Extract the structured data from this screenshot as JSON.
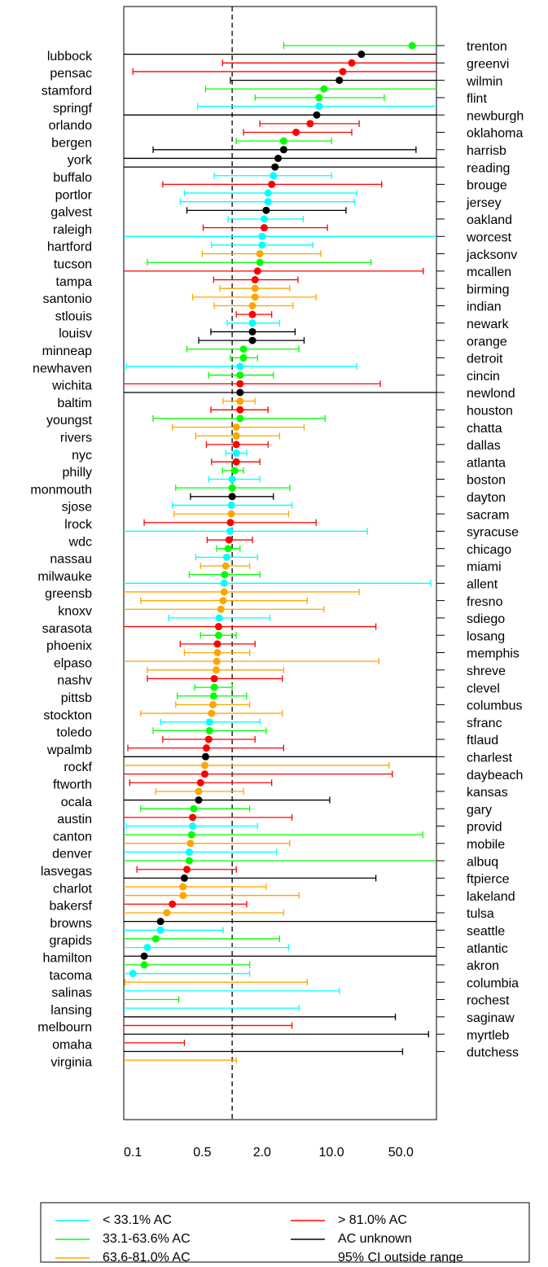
{
  "chart_data": {
    "type": "forest",
    "xscale": "log",
    "xlim": [
      0.081,
      114
    ],
    "xticks": [
      0.1,
      0.5,
      {
        "value": 2,
        "label": "2.0"
      },
      {
        "value": 10,
        "label": "10.0"
      },
      {
        "value": 50,
        "label": "50.0"
      }
    ],
    "refline": 1,
    "categories": [
      "trenton",
      "lubbock",
      "greenvi",
      "pensac",
      "wilmin",
      "stamford",
      "flint",
      "springf",
      "newburgh",
      "orlando",
      "oklahoma",
      "bergen",
      "harrisb",
      "york",
      "reading",
      "buffalo",
      "brouge",
      "portlor",
      "jersey",
      "galvest",
      "oakland",
      "raleigh",
      "worcest",
      "hartford",
      "jacksonv",
      "tucson",
      "mcallen",
      "tampa",
      "birming",
      "santonio",
      "indian",
      "stlouis",
      "newark",
      "louisv",
      "orange",
      "minneap",
      "detroit",
      "newhaven",
      "cincin",
      "wichita",
      "newlond",
      "baltim",
      "houston",
      "youngst",
      "chatta",
      "rivers",
      "dallas",
      "nyc",
      "atlanta",
      "philly",
      "boston",
      "monmouth",
      "dayton",
      "sjose",
      "sacram",
      "lrock",
      "syracuse",
      "wdc",
      "chicago",
      "nassau",
      "miami",
      "milwauke",
      "allent",
      "greensb",
      "fresno",
      "knoxv",
      "sdiego",
      "sarasota",
      "losang",
      "phoenix",
      "memphis",
      "elpaso",
      "shreve",
      "nashv",
      "clevel",
      "pittsb",
      "columbus",
      "stockton",
      "sfranc",
      "toledo",
      "ftlaud",
      "wpalmb",
      "charlest",
      "rockf",
      "daybeach",
      "ftworth",
      "kansas",
      "ocala",
      "gary",
      "austin",
      "provid",
      "canton",
      "mobile",
      "denver",
      "albuq",
      "lasvegas",
      "ftpierce",
      "charlot",
      "lakeland",
      "bakersf",
      "tulsa",
      "browns",
      "seattle",
      "grapids",
      "atlantic",
      "hamilton",
      "akron",
      "tacoma",
      "columbia",
      "salinas",
      "rochest",
      "lansing",
      "saginaw",
      "melbourn",
      "myrtleb",
      "omaha",
      "dutchess",
      "virginia"
    ],
    "values": [
      65,
      20,
      16,
      13,
      12,
      8.4,
      7.5,
      7.5,
      7.1,
      6.1,
      4.4,
      3.3,
      3.3,
      2.9,
      2.7,
      2.6,
      2.5,
      2.3,
      2.3,
      2.2,
      2.1,
      2.1,
      2.0,
      2.0,
      1.9,
      1.9,
      1.8,
      1.7,
      1.7,
      1.7,
      1.6,
      1.6,
      1.6,
      1.6,
      1.6,
      1.3,
      1.3,
      1.2,
      1.2,
      1.2,
      1.2,
      1.2,
      1.2,
      1.2,
      1.1,
      1.1,
      1.1,
      1.1,
      1.1,
      1.06,
      1.0,
      1.0,
      1.0,
      0.98,
      0.98,
      0.96,
      0.95,
      0.93,
      0.91,
      0.88,
      0.86,
      0.84,
      0.83,
      0.83,
      0.81,
      0.77,
      0.74,
      0.73,
      0.73,
      0.71,
      0.71,
      0.7,
      0.69,
      0.66,
      0.66,
      0.65,
      0.64,
      0.62,
      0.59,
      0.59,
      0.58,
      0.55,
      0.54,
      0.53,
      0.53,
      0.48,
      0.46,
      0.46,
      0.41,
      0.4,
      0.4,
      0.39,
      0.38,
      0.37,
      0.37,
      0.35,
      0.33,
      0.32,
      0.32,
      0.25,
      0.22,
      0.19,
      0.19,
      0.17,
      0.14,
      0.13,
      0.13,
      0.1,
      null,
      null,
      null,
      null,
      null,
      null,
      null,
      null,
      null,
      null
    ],
    "lower": [
      3.3,
      null,
      0.8,
      0.1,
      0.96,
      0.54,
      1.7,
      0.45,
      null,
      1.9,
      1.3,
      1.1,
      0.16,
      null,
      null,
      0.66,
      0.2,
      0.33,
      0.3,
      0.35,
      0.91,
      0.51,
      null,
      0.62,
      0.5,
      0.14,
      null,
      0.65,
      0.75,
      0.4,
      0.66,
      1.1,
      0.89,
      0.61,
      0.46,
      0.35,
      0.96,
      0.086,
      0.58,
      null,
      null,
      0.81,
      0.61,
      0.16,
      0.25,
      0.43,
      0.55,
      0.86,
      0.62,
      0.8,
      0.58,
      0.27,
      0.38,
      0.25,
      0.26,
      0.13,
      null,
      0.56,
      0.7,
      0.43,
      0.48,
      0.37,
      null,
      null,
      0.12,
      null,
      0.23,
      null,
      0.48,
      0.3,
      0.33,
      null,
      0.14,
      0.14,
      0.42,
      0.28,
      0.27,
      0.12,
      0.19,
      0.16,
      0.2,
      0.089,
      null,
      null,
      null,
      0.093,
      0.17,
      null,
      0.12,
      null,
      0.086,
      null,
      null,
      null,
      null,
      0.11,
      null,
      null,
      null,
      null,
      null,
      null,
      null,
      null,
      null,
      null,
      null,
      null,
      0.083,
      null,
      null,
      null,
      null,
      null,
      null,
      null,
      null,
      null
    ],
    "upper": [
      null,
      null,
      null,
      null,
      null,
      null,
      34,
      null,
      null,
      19,
      16,
      10,
      71,
      null,
      null,
      10,
      32,
      18,
      17,
      14,
      5.2,
      9.1,
      null,
      6.5,
      7.8,
      25,
      84,
      4.6,
      3.8,
      7.0,
      4.1,
      2.5,
      3.0,
      4.3,
      5.3,
      4.7,
      1.8,
      18,
      2.6,
      31,
      null,
      1.7,
      2.3,
      8.6,
      5.3,
      3.0,
      2.3,
      1.4,
      1.9,
      1.3,
      1.9,
      3.8,
      2.6,
      4.0,
      3.7,
      7.0,
      23,
      1.6,
      1.2,
      1.8,
      1.5,
      1.9,
      100,
      19,
      5.7,
      8.4,
      2.4,
      28,
      1.1,
      1.7,
      1.5,
      30,
      3.3,
      3.2,
      1.0,
      1.4,
      1.5,
      3.2,
      1.9,
      2.2,
      1.7,
      3.3,
      null,
      38,
      41,
      2.5,
      1.3,
      9.6,
      1.5,
      4.0,
      1.8,
      83,
      3.8,
      2.8,
      null,
      1.1,
      28,
      2.2,
      4.7,
      1.4,
      3.3,
      null,
      0.81,
      3.0,
      3.7,
      null,
      1.5,
      1.5,
      5.7,
      12,
      0.29,
      4.7,
      44,
      4.0,
      95,
      0.33,
      52,
      1.1
    ],
    "colors": [
      "#0f0",
      "#000",
      "#f00",
      "#f00",
      "#000",
      "#0f0",
      "#0f0",
      "#0ff",
      "#000",
      "#f00",
      "#f00",
      "#0f0",
      "#000",
      "#000",
      "#000",
      "#0ff",
      "#f00",
      "#0ff",
      "#0ff",
      "#000",
      "#0ff",
      "#f00",
      "#0ff",
      "#0ff",
      "#ffa500",
      "#0f0",
      "#f00",
      "#f00",
      "#ffa500",
      "#ffa500",
      "#ffa500",
      "#f00",
      "#0ff",
      "#000",
      "#000",
      "#0f0",
      "#0f0",
      "#0ff",
      "#0f0",
      "#f00",
      "#000",
      "#ffa500",
      "#f00",
      "#0f0",
      "#ffa500",
      "#ffa500",
      "#f00",
      "#0ff",
      "#f00",
      "#0f0",
      "#0ff",
      "#0f0",
      "#000",
      "#0ff",
      "#ffa500",
      "#f00",
      "#0ff",
      "#f00",
      "#0f0",
      "#0ff",
      "#ffa500",
      "#0f0",
      "#0ff",
      "#ffa500",
      "#ffa500",
      "#ffa500",
      "#0ff",
      "#f00",
      "#0f0",
      "#f00",
      "#ffa500",
      "#ffa500",
      "#ffa500",
      "#f00",
      "#0f0",
      "#0f0",
      "#ffa500",
      "#ffa500",
      "#0ff",
      "#0f0",
      "#f00",
      "#f00",
      "#000",
      "#ffa500",
      "#f00",
      "#f00",
      "#ffa500",
      "#000",
      "#0f0",
      "#f00",
      "#0ff",
      "#0f0",
      "#ffa500",
      "#0ff",
      "#0f0",
      "#f00",
      "#000",
      "#ffa500",
      "#ffa500",
      "#f00",
      "#ffa500",
      "#000",
      "#0ff",
      "#0f0",
      "#0ff",
      "#000",
      "#0f0",
      "#0ff",
      "#ffa500",
      "#0ff",
      "#0f0",
      "#0ff",
      "#000",
      "#f00",
      "#000",
      "#f00",
      "#000",
      "#ffa500"
    ],
    "legend": [
      {
        "name": "< 33.1% AC",
        "color": "#0ff"
      },
      {
        "name": "33.1-63.6% AC",
        "color": "#0f0"
      },
      {
        "name": "63.6-81.0% AC",
        "color": "#ffa500"
      },
      {
        "name": "> 81.0% AC",
        "color": "#f00"
      },
      {
        "name": "AC unknown",
        "color": "#000"
      },
      {
        "name": "95% CI outside range"
      }
    ]
  }
}
